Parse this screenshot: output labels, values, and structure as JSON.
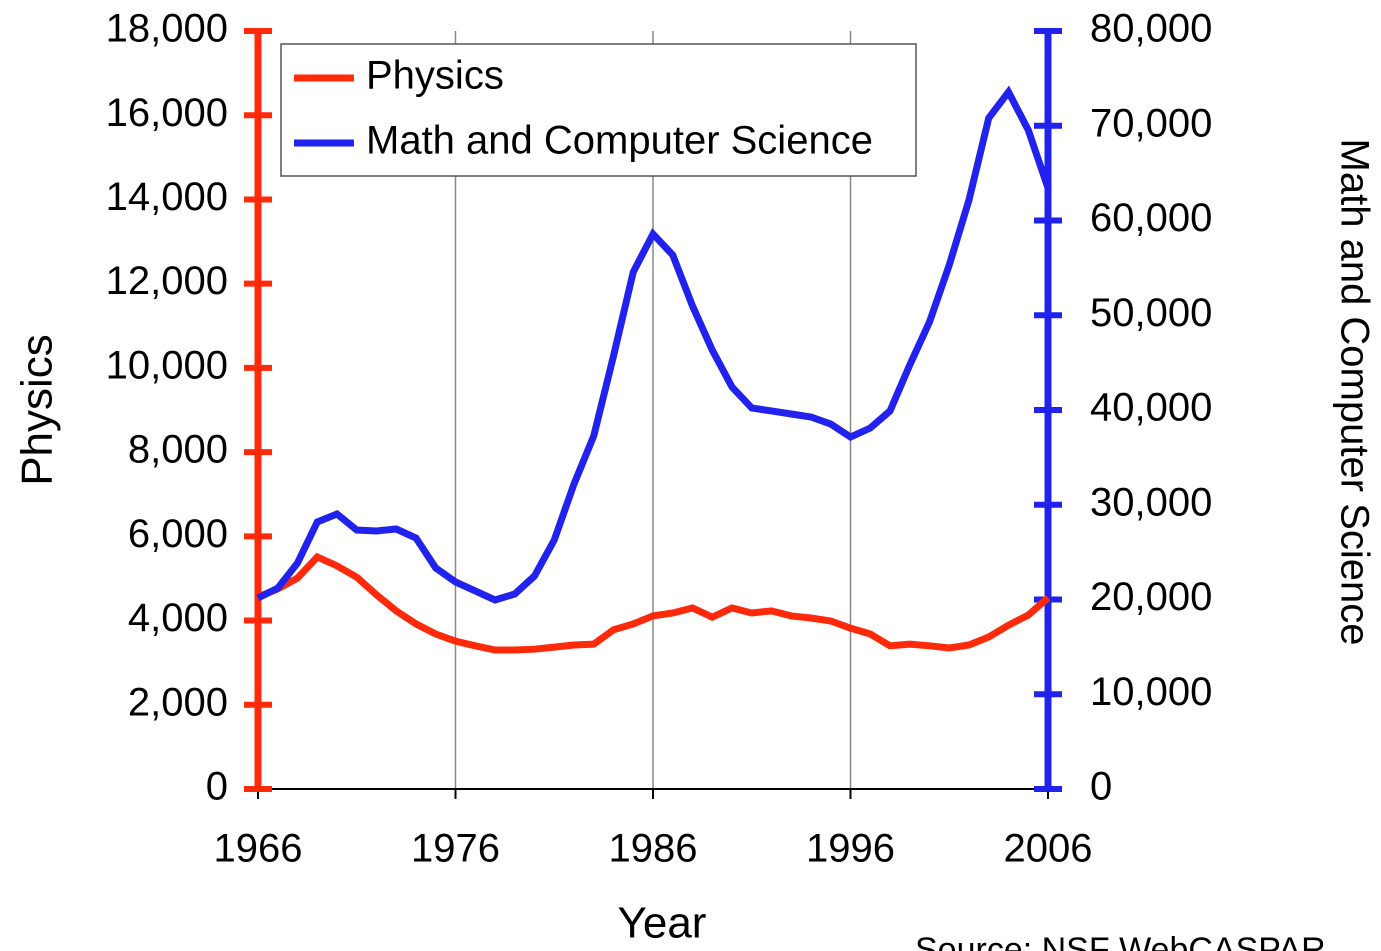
{
  "chart_data": {
    "type": "line",
    "x": [
      1966,
      1967,
      1968,
      1969,
      1970,
      1971,
      1972,
      1973,
      1974,
      1975,
      1976,
      1977,
      1978,
      1979,
      1980,
      1981,
      1982,
      1983,
      1984,
      1985,
      1986,
      1987,
      1988,
      1989,
      1990,
      1991,
      1992,
      1993,
      1994,
      1995,
      1996,
      1997,
      1998,
      1999,
      2000,
      2001,
      2002,
      2003,
      2004,
      2005,
      2006
    ],
    "series": [
      {
        "name": "Physics",
        "color": "#ff2a0a",
        "axis": "y",
        "values": [
          4560,
          4750,
          5010,
          5510,
          5300,
          5030,
          4610,
          4230,
          3920,
          3680,
          3510,
          3400,
          3300,
          3300,
          3320,
          3370,
          3420,
          3440,
          3780,
          3920,
          4110,
          4180,
          4300,
          4080,
          4300,
          4180,
          4230,
          4110,
          4060,
          3990,
          3820,
          3680,
          3400,
          3440,
          3400,
          3350,
          3420,
          3610,
          3890,
          4130,
          4540
        ]
      },
      {
        "name": "Math and Computer Science",
        "color": "#2222ee",
        "axis": "y2",
        "values": [
          20160,
          21200,
          23850,
          28180,
          29020,
          27330,
          27230,
          27440,
          26490,
          23320,
          21850,
          20900,
          19950,
          20580,
          22480,
          26280,
          32190,
          37260,
          45700,
          54560,
          58580,
          56360,
          50980,
          46330,
          42430,
          40210,
          39900,
          39580,
          39260,
          38520,
          37150,
          38100,
          39900,
          44750,
          49290,
          55300,
          62170,
          70820,
          73560,
          69550,
          63430
        ]
      }
    ],
    "x_label": "Year",
    "y_label": "Physics",
    "y2_label": "Math and Computer Science",
    "source": "Source: NSF WebCASPAR",
    "xlim": [
      1966,
      2006
    ],
    "xticks": [
      1966,
      1976,
      1986,
      1996,
      2006
    ],
    "ylim": [
      0,
      18000
    ],
    "yticks": [
      0,
      {
        "value": 2000,
        "label": "2,000"
      },
      {
        "value": 4000,
        "label": "4,000"
      },
      {
        "value": 6000,
        "label": "6,000"
      },
      {
        "value": 8000,
        "label": "8,000"
      },
      {
        "value": 10000,
        "label": "10,000"
      },
      {
        "value": 12000,
        "label": "12,000"
      },
      {
        "value": 14000,
        "label": "14,000"
      },
      {
        "value": 16000,
        "label": "16,000"
      },
      {
        "value": 18000,
        "label": "18,000"
      }
    ],
    "y2lim": [
      0,
      80000
    ],
    "y2ticks": [
      0,
      {
        "value": 10000,
        "label": "10,000"
      },
      {
        "value": 20000,
        "label": "20,000"
      },
      {
        "value": 30000,
        "label": "30,000"
      },
      {
        "value": 40000,
        "label": "40,000"
      },
      {
        "value": 50000,
        "label": "50,000"
      },
      {
        "value": 60000,
        "label": "60,000"
      },
      {
        "value": 70000,
        "label": "70,000"
      },
      {
        "value": 80000,
        "label": "80,000"
      }
    ],
    "grid": true,
    "legend": "upper left"
  }
}
